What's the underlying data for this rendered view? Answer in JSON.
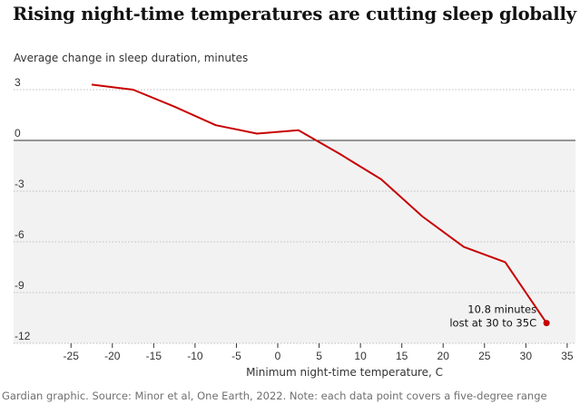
{
  "chart_data": {
    "type": "line",
    "title": "Rising night-time temperatures are cutting sleep globally",
    "ylabel": "Average change in sleep duration, minutes",
    "xlabel": "Minimum night-time temperature, C",
    "x": [
      -22.5,
      -17.5,
      -12.5,
      -7.5,
      -2.5,
      2.5,
      7.5,
      12.5,
      17.5,
      22.5,
      27.5,
      32.5
    ],
    "values": [
      3.3,
      3.0,
      2.0,
      0.9,
      0.4,
      0.6,
      -0.8,
      -2.3,
      -4.5,
      -6.3,
      -7.2,
      -10.8
    ],
    "xlim": [
      -27,
      36
    ],
    "ylim": [
      -12,
      3
    ],
    "xticks": [
      -25,
      -20,
      -15,
      -10,
      -5,
      0,
      5,
      10,
      15,
      20,
      25,
      30,
      35
    ],
    "yticks": [
      3,
      0,
      -3,
      -6,
      -9,
      -12
    ],
    "annotation": {
      "line1": "10.8 minutes",
      "line2": "lost at 30 to 35C"
    },
    "line_color": "#c70000",
    "shade_color": "#f2f2f2"
  },
  "footer": "Gardian graphic. Source: Minor et al, One Earth, 2022. Note: each data point covers a five-degree range"
}
